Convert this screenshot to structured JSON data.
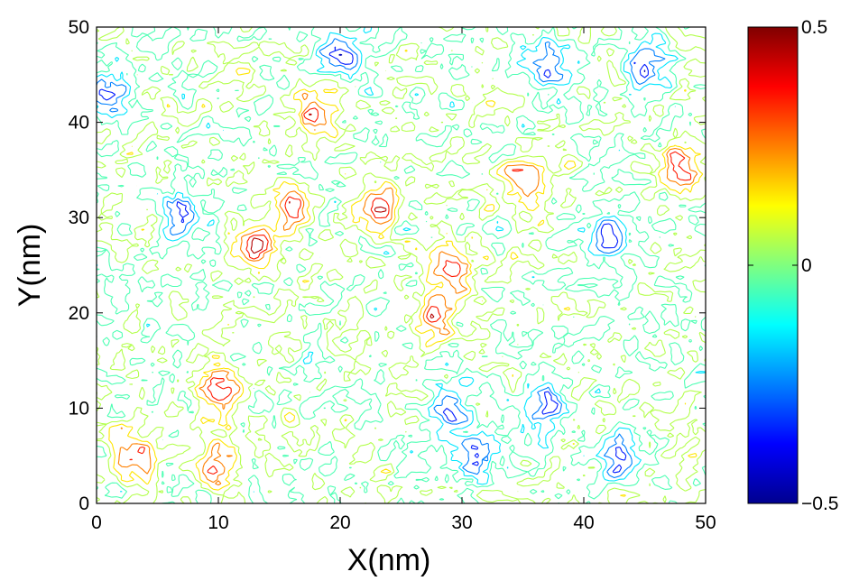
{
  "chart_data": {
    "type": "heatmap",
    "subtype": "contour",
    "title": "",
    "xlabel": "X(nm)",
    "ylabel": "Y(nm)",
    "xlim": [
      0,
      50
    ],
    "ylim": [
      0,
      50
    ],
    "x_ticks": [
      0,
      10,
      20,
      30,
      40,
      50
    ],
    "y_ticks": [
      0,
      10,
      20,
      30,
      40,
      50
    ],
    "colorbar": {
      "colormap": "jet",
      "range": [
        -0.5,
        0.5
      ],
      "tick_values": [
        0.5,
        0,
        -0.5
      ],
      "tick_labels": [
        "0.5",
        "0",
        "−0.5"
      ]
    },
    "features": [
      {
        "level": "high",
        "x": 10,
        "y": 12
      },
      {
        "level": "high",
        "x": 10,
        "y": 4
      },
      {
        "level": "high",
        "x": 13,
        "y": 27
      },
      {
        "level": "high",
        "x": 29,
        "y": 25
      },
      {
        "level": "high",
        "x": 28,
        "y": 20
      },
      {
        "level": "high",
        "x": 23,
        "y": 31
      },
      {
        "level": "high",
        "x": 35,
        "y": 34
      },
      {
        "level": "high",
        "x": 3,
        "y": 5
      },
      {
        "level": "high",
        "x": 16,
        "y": 31
      },
      {
        "level": "high",
        "x": 18,
        "y": 41
      },
      {
        "level": "high",
        "x": 48,
        "y": 35
      },
      {
        "level": "low",
        "x": 31,
        "y": 5
      },
      {
        "level": "low",
        "x": 29,
        "y": 10
      },
      {
        "level": "low",
        "x": 20,
        "y": 47
      },
      {
        "level": "low",
        "x": 42,
        "y": 28
      },
      {
        "level": "low",
        "x": 37,
        "y": 46
      },
      {
        "level": "low",
        "x": 45,
        "y": 46
      },
      {
        "level": "low",
        "x": 7,
        "y": 30
      },
      {
        "level": "low",
        "x": 1,
        "y": 43
      },
      {
        "level": "low",
        "x": 43,
        "y": 5
      },
      {
        "level": "low",
        "x": 37,
        "y": 10
      }
    ]
  }
}
